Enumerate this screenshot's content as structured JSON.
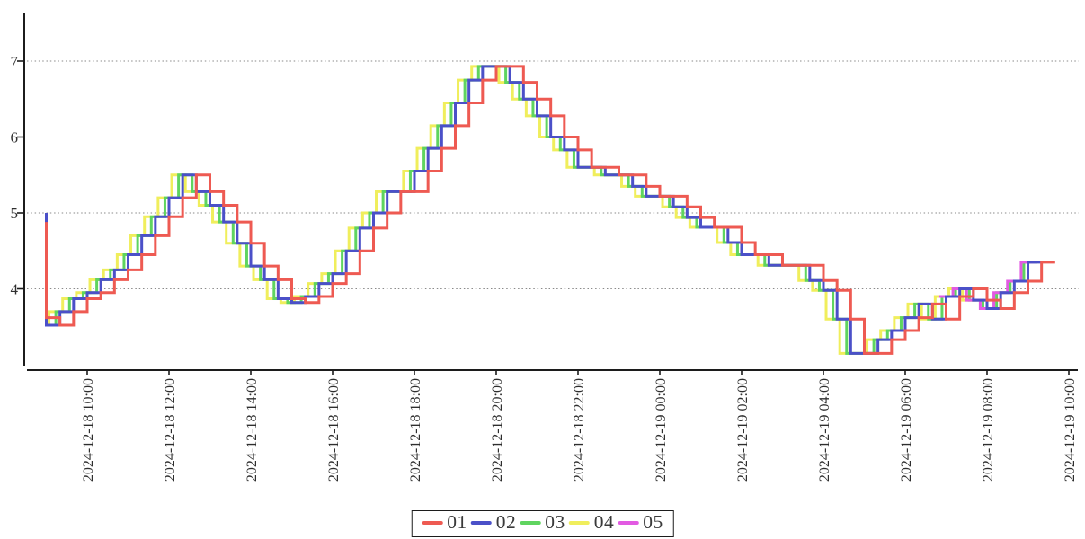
{
  "colors": {
    "background": "#ffffff",
    "axis": "#1c1c1c",
    "grid": "#8a8a8a",
    "tick_text": "#2e2e2e",
    "legend_border": "#1c1c1c",
    "legend_text": "#3a3a3a"
  },
  "chart_data": {
    "type": "step_line",
    "title": "",
    "xlabel": "",
    "ylabel": "",
    "grid": "horizontal-dotted",
    "legend_position": "bottom-center",
    "x_start_time": "2024-12-18 09:00",
    "x_step_minutes": 20,
    "x_tick_labels": [
      "2024-12-18 10:00",
      "2024-12-18 12:00",
      "2024-12-18 14:00",
      "2024-12-18 16:00",
      "2024-12-18 18:00",
      "2024-12-18 20:00",
      "2024-12-18 22:00",
      "2024-12-19 00:00",
      "2024-12-19 02:00",
      "2024-12-19 04:00",
      "2024-12-19 06:00",
      "2024-12-19 08:00",
      "2024-12-19 10:00"
    ],
    "y_tick_labels": [
      "4",
      "5",
      "6",
      "7"
    ],
    "y_tick_values": [
      4,
      5,
      6,
      7
    ],
    "ylim": [
      2.93,
      7.64
    ],
    "series": [
      {
        "name": "01",
        "color": "#ee5a52",
        "x_lead_minutes": 0,
        "start_offset_steps": 0,
        "initial_spike_value": 4.88,
        "values": [
          3.62,
          3.52,
          3.7,
          3.87,
          3.95,
          4.12,
          4.25,
          4.45,
          4.7,
          4.95,
          5.2,
          5.5,
          5.28,
          5.1,
          4.88,
          4.6,
          4.3,
          4.12,
          3.87,
          3.82,
          3.9,
          4.07,
          4.2,
          4.5,
          4.8,
          5.0,
          5.28,
          5.28,
          5.55,
          5.85,
          6.15,
          6.45,
          6.75,
          6.93,
          6.93,
          6.72,
          6.5,
          6.28,
          6.0,
          5.83,
          5.6,
          5.6,
          5.5,
          5.5,
          5.35,
          5.22,
          5.22,
          5.08,
          4.94,
          4.81,
          4.81,
          4.61,
          4.45,
          4.45,
          4.31,
          4.31,
          4.31,
          4.11,
          3.98,
          3.6,
          3.15,
          3.15,
          3.33,
          3.45,
          3.62,
          3.8,
          3.6,
          3.9,
          4.0,
          3.85,
          3.74,
          3.95,
          4.1,
          4.35
        ]
      },
      {
        "name": "02",
        "color": "#4b50c8",
        "x_lead_minutes": 20,
        "start_offset_steps": 0,
        "initial_spike_value": 5.0,
        "values": [
          3.62,
          3.52,
          3.7,
          3.87,
          3.95,
          4.12,
          4.25,
          4.45,
          4.7,
          4.95,
          5.2,
          5.5,
          5.28,
          5.1,
          4.88,
          4.6,
          4.3,
          4.12,
          3.87,
          3.82,
          3.9,
          4.07,
          4.2,
          4.5,
          4.8,
          5.0,
          5.28,
          5.28,
          5.55,
          5.85,
          6.15,
          6.45,
          6.75,
          6.93,
          6.93,
          6.72,
          6.5,
          6.28,
          6.0,
          5.83,
          5.6,
          5.6,
          5.5,
          5.5,
          5.35,
          5.22,
          5.22,
          5.08,
          4.94,
          4.81,
          4.81,
          4.61,
          4.45,
          4.45,
          4.31,
          4.31,
          4.31,
          4.11,
          3.98,
          3.6,
          3.15,
          3.15,
          3.33,
          3.45,
          3.62,
          3.8,
          3.6,
          3.9,
          4.0,
          3.85,
          3.74,
          3.95,
          4.1,
          4.35
        ]
      },
      {
        "name": "03",
        "color": "#5fd45f",
        "x_lead_minutes": 26,
        "start_offset_steps": 0,
        "initial_spike_value": 4.95,
        "values": [
          3.62,
          3.52,
          3.7,
          3.87,
          3.95,
          4.12,
          4.25,
          4.45,
          4.7,
          4.95,
          5.2,
          5.5,
          5.28,
          5.1,
          4.88,
          4.6,
          4.3,
          4.12,
          3.87,
          3.82,
          3.9,
          4.07,
          4.2,
          4.5,
          4.8,
          5.0,
          5.28,
          5.28,
          5.55,
          5.85,
          6.15,
          6.45,
          6.75,
          6.93,
          6.93,
          6.72,
          6.5,
          6.28,
          6.0,
          5.83,
          5.6,
          5.6,
          5.5,
          5.5,
          5.35,
          5.22,
          5.22,
          5.08,
          4.94,
          4.81,
          4.81,
          4.61,
          4.45,
          4.45,
          4.31,
          4.31,
          4.31,
          4.11,
          3.98,
          3.6,
          3.15,
          3.15,
          3.33,
          3.45,
          3.62,
          3.8,
          3.6,
          3.9,
          4.0,
          3.85,
          3.74,
          3.95,
          4.1,
          4.35
        ]
      },
      {
        "name": "04",
        "color": "#f0ee5c",
        "x_lead_minutes": 36,
        "start_offset_steps": 0,
        "initial_spike_value": 4.95,
        "values": [
          3.62,
          3.52,
          3.7,
          3.87,
          3.95,
          4.12,
          4.25,
          4.45,
          4.7,
          4.95,
          5.2,
          5.5,
          5.28,
          5.1,
          4.88,
          4.6,
          4.3,
          4.12,
          3.87,
          3.82,
          3.9,
          4.07,
          4.2,
          4.5,
          4.8,
          5.0,
          5.28,
          5.28,
          5.55,
          5.85,
          6.15,
          6.45,
          6.75,
          6.93,
          6.93,
          6.72,
          6.5,
          6.28,
          6.0,
          5.83,
          5.6,
          5.6,
          5.5,
          5.5,
          5.35,
          5.22,
          5.22,
          5.08,
          4.94,
          4.81,
          4.81,
          4.61,
          4.45,
          4.45,
          4.31,
          4.31,
          4.31,
          4.11,
          3.98,
          3.6,
          3.15,
          3.15,
          3.33,
          3.45,
          3.62,
          3.8,
          3.6,
          3.9,
          4.0,
          3.85
        ]
      },
      {
        "name": "05",
        "color": "#e25ae2",
        "x_lead_minutes": 30,
        "start_offset_steps": 67,
        "initial_spike_value": null,
        "values": [
          3.9,
          4.0,
          3.85,
          3.74,
          3.95,
          4.1,
          4.35
        ]
      }
    ]
  }
}
